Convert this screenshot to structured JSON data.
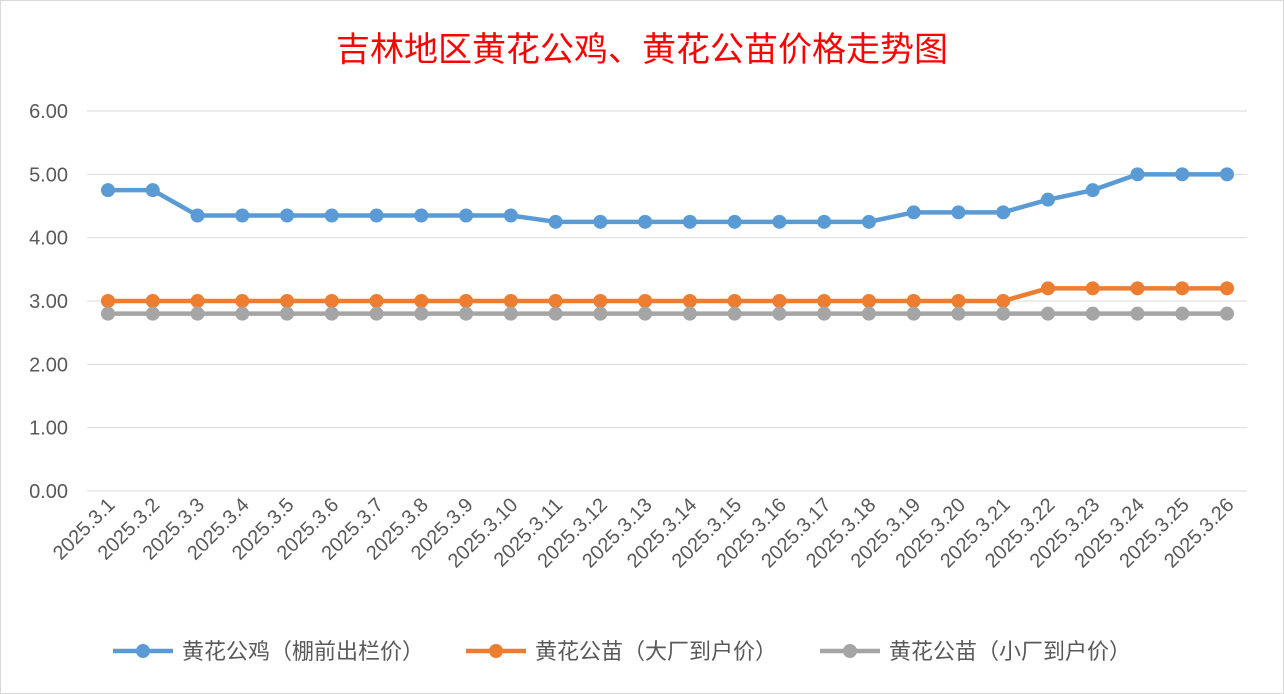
{
  "chart_data": {
    "type": "line",
    "title": "吉林地区黄花公鸡、黄花公苗价格走势图",
    "xlabel": "",
    "ylabel": "",
    "ylim": [
      0,
      6
    ],
    "yticks": [
      "0.00",
      "1.00",
      "2.00",
      "3.00",
      "4.00",
      "5.00",
      "6.00"
    ],
    "grid": true,
    "legend_position": "bottom",
    "categories": [
      "2025.3.1",
      "2025.3.2",
      "2025.3.3",
      "2025.3.4",
      "2025.3.5",
      "2025.3.6",
      "2025.3.7",
      "2025.3.8",
      "2025.3.9",
      "2025.3.10",
      "2025.3.11",
      "2025.3.12",
      "2025.3.13",
      "2025.3.14",
      "2025.3.15",
      "2025.3.16",
      "2025.3.17",
      "2025.3.18",
      "2025.3.19",
      "2025.3.20",
      "2025.3.21",
      "2025.3.22",
      "2025.3.23",
      "2025.3.24",
      "2025.3.25",
      "2025.3.26"
    ],
    "series": [
      {
        "name": "黄花公鸡（棚前出栏价）",
        "color": "#5b9bd5",
        "values": [
          4.75,
          4.75,
          4.35,
          4.35,
          4.35,
          4.35,
          4.35,
          4.35,
          4.35,
          4.35,
          4.25,
          4.25,
          4.25,
          4.25,
          4.25,
          4.25,
          4.25,
          4.25,
          4.4,
          4.4,
          4.4,
          4.6,
          4.75,
          5.0,
          5.0,
          5.0
        ]
      },
      {
        "name": "黄花公苗（大厂到户价）",
        "color": "#ed7d31",
        "values": [
          3.0,
          3.0,
          3.0,
          3.0,
          3.0,
          3.0,
          3.0,
          3.0,
          3.0,
          3.0,
          3.0,
          3.0,
          3.0,
          3.0,
          3.0,
          3.0,
          3.0,
          3.0,
          3.0,
          3.0,
          3.0,
          3.2,
          3.2,
          3.2,
          3.2,
          3.2
        ]
      },
      {
        "name": "黄花公苗（小厂到户价）",
        "color": "#a5a5a5",
        "values": [
          2.8,
          2.8,
          2.8,
          2.8,
          2.8,
          2.8,
          2.8,
          2.8,
          2.8,
          2.8,
          2.8,
          2.8,
          2.8,
          2.8,
          2.8,
          2.8,
          2.8,
          2.8,
          2.8,
          2.8,
          2.8,
          2.8,
          2.8,
          2.8,
          2.8,
          2.8
        ]
      }
    ],
    "title_color": "#ff0000",
    "text_color": "#595959",
    "grid_color": "#d9d9d9"
  }
}
